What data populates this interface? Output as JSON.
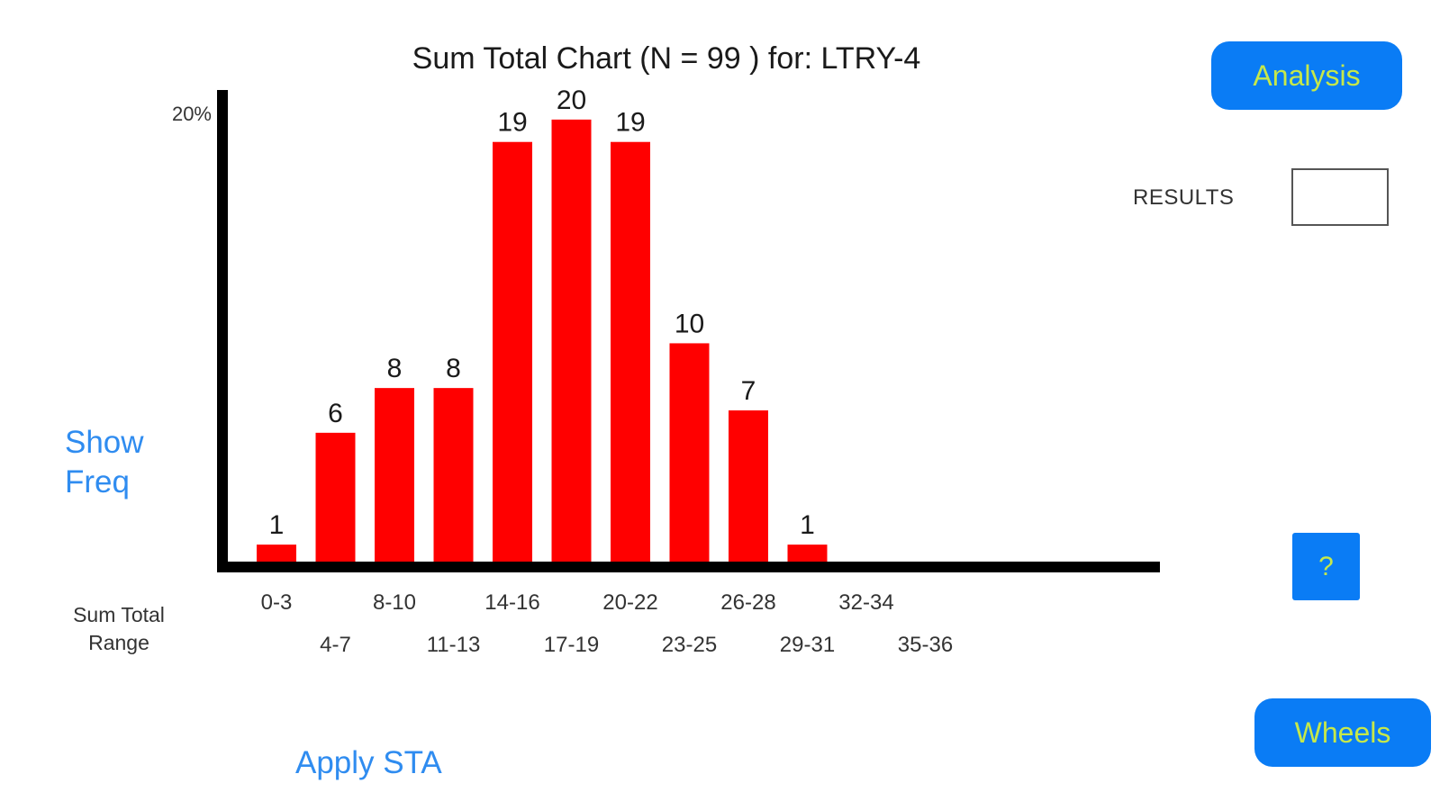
{
  "header": {
    "analysis_label": "Analysis",
    "results_label": "RESULTS",
    "results_value": ""
  },
  "controls": {
    "show_freq_label": "Show\nFreq",
    "apply_sta_label": "Apply STA",
    "help_label": "?",
    "wheels_label": "Wheels"
  },
  "colors": {
    "bar": "#ff0000",
    "axis": "#000000",
    "button_bg": "#0a7cf5",
    "button_text": "#c6e84a",
    "link": "#2f8cf0"
  },
  "chart_data": {
    "type": "bar",
    "title": "Sum Total Chart (N =  99 ) for: LTRY-4",
    "xlabel": "Sum Total\nRange",
    "ylabel": "",
    "y_max_label": "20%",
    "ylim": [
      0,
      21
    ],
    "categories": [
      "0-3",
      "4-7",
      "8-10",
      "11-13",
      "14-16",
      "17-19",
      "20-22",
      "23-25",
      "26-28",
      "29-31",
      "32-34",
      "35-36"
    ],
    "values": [
      1,
      6,
      8,
      8,
      19,
      20,
      19,
      10,
      7,
      1,
      null,
      null
    ],
    "value_labels": [
      "1",
      "6",
      "8",
      "8",
      "19",
      "20",
      "19",
      "10",
      "7",
      "1",
      "",
      ""
    ],
    "grid": false
  }
}
